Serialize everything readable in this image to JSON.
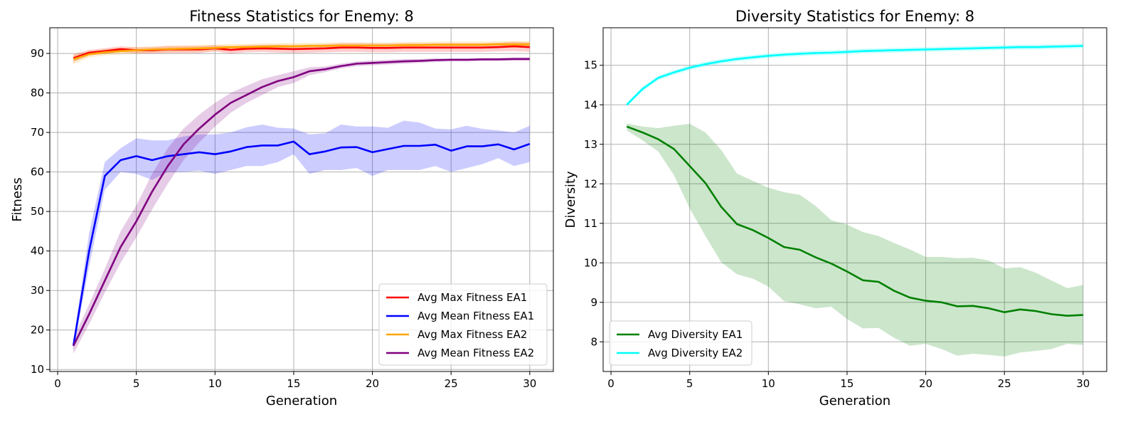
{
  "chart_data": [
    {
      "type": "line",
      "title": "Fitness Statistics for Enemy: 8",
      "xlabel": "Generation",
      "ylabel": "Fitness",
      "xlim": [
        -0.5,
        31.5
      ],
      "ylim": [
        9.5,
        96.5
      ],
      "xticks": [
        0,
        5,
        10,
        15,
        20,
        25,
        30
      ],
      "yticks": [
        10,
        20,
        30,
        40,
        50,
        60,
        70,
        80,
        90
      ],
      "grid": true,
      "legend": "bottom-right",
      "x": [
        1,
        2,
        3,
        4,
        5,
        6,
        7,
        8,
        9,
        10,
        11,
        12,
        13,
        14,
        15,
        16,
        17,
        18,
        19,
        20,
        21,
        22,
        23,
        24,
        25,
        26,
        27,
        28,
        29,
        30
      ],
      "series": [
        {
          "name": "Avg Max Fitness EA1",
          "color": "#ff0000",
          "values": [
            88.8,
            90.2,
            90.6,
            91.1,
            90.8,
            90.8,
            91.0,
            91.0,
            91.0,
            91.3,
            90.9,
            91.2,
            91.3,
            91.2,
            91.1,
            91.2,
            91.3,
            91.5,
            91.5,
            91.4,
            91.4,
            91.5,
            91.5,
            91.5,
            91.5,
            91.5,
            91.5,
            91.6,
            91.8,
            91.6
          ],
          "lower": [
            87.8,
            89.5,
            89.9,
            90.4,
            90.0,
            90.0,
            90.1,
            90.1,
            90.1,
            90.5,
            90.0,
            90.3,
            90.4,
            90.2,
            90.1,
            90.2,
            90.3,
            90.4,
            90.4,
            90.3,
            90.3,
            90.4,
            90.4,
            90.4,
            90.4,
            90.4,
            90.4,
            90.5,
            90.6,
            90.4
          ],
          "upper": [
            89.8,
            90.9,
            91.3,
            91.8,
            91.6,
            91.6,
            91.9,
            91.9,
            91.9,
            92.1,
            91.8,
            92.1,
            92.2,
            92.2,
            92.1,
            92.2,
            92.3,
            92.6,
            92.6,
            92.5,
            92.5,
            92.6,
            92.6,
            92.6,
            92.6,
            92.6,
            92.6,
            92.7,
            93.0,
            92.8
          ]
        },
        {
          "name": "Avg Mean Fitness EA1",
          "color": "#0000ff",
          "values": [
            16.0,
            40.0,
            59.0,
            63.0,
            64.0,
            63.0,
            64.0,
            64.5,
            65.0,
            64.5,
            65.2,
            66.3,
            66.7,
            66.7,
            67.7,
            64.5,
            65.2,
            66.2,
            66.3,
            65.0,
            65.8,
            66.6,
            66.6,
            66.9,
            65.4,
            66.5,
            66.5,
            67.0,
            65.7,
            67.1
          ],
          "lower": [
            15.0,
            36.0,
            55.5,
            60.0,
            59.5,
            58.0,
            60.0,
            60.0,
            60.3,
            59.5,
            60.5,
            61.5,
            61.5,
            62.5,
            64.5,
            59.5,
            60.5,
            60.5,
            61.0,
            59.0,
            60.5,
            60.5,
            60.5,
            61.5,
            60.0,
            61.0,
            62.0,
            63.5,
            61.5,
            62.5
          ],
          "upper": [
            17.5,
            44.5,
            62.5,
            66.0,
            68.5,
            68.0,
            68.0,
            69.0,
            69.5,
            69.5,
            70.0,
            71.3,
            72.0,
            71.2,
            71.0,
            69.5,
            69.8,
            72.0,
            71.5,
            71.5,
            71.2,
            73.0,
            72.5,
            71.0,
            70.8,
            71.7,
            70.9,
            70.5,
            70.0,
            71.7
          ]
        },
        {
          "name": "Avg Max Fitness EA2",
          "color": "#ffa500",
          "values": [
            88.5,
            89.8,
            90.3,
            90.6,
            90.8,
            91.0,
            91.1,
            91.2,
            91.3,
            91.4,
            91.6,
            91.6,
            91.7,
            91.8,
            91.8,
            91.9,
            91.9,
            92.0,
            92.0,
            92.0,
            92.0,
            92.1,
            92.1,
            92.2,
            92.2,
            92.2,
            92.2,
            92.3,
            92.3,
            92.3
          ],
          "lower": [
            87.3,
            89.0,
            89.5,
            89.8,
            90.0,
            90.2,
            90.3,
            90.4,
            90.5,
            90.6,
            90.8,
            90.8,
            90.9,
            91.0,
            91.0,
            91.1,
            91.1,
            91.2,
            91.2,
            91.2,
            91.2,
            91.3,
            91.3,
            91.4,
            91.4,
            91.4,
            91.4,
            91.5,
            91.5,
            91.5
          ],
          "upper": [
            89.7,
            90.6,
            91.1,
            91.4,
            91.6,
            91.8,
            91.9,
            92.0,
            92.1,
            92.2,
            92.4,
            92.4,
            92.5,
            92.6,
            92.6,
            92.7,
            92.7,
            92.8,
            92.8,
            92.8,
            92.8,
            92.9,
            92.9,
            93.0,
            93.0,
            93.0,
            93.0,
            93.1,
            93.1,
            93.1
          ]
        },
        {
          "name": "Avg Mean Fitness EA2",
          "color": "#800080",
          "values": [
            16.0,
            24.0,
            32.5,
            41.0,
            47.5,
            55.0,
            61.5,
            67.0,
            71.0,
            74.5,
            77.5,
            79.5,
            81.5,
            83.0,
            84.0,
            85.5,
            86.0,
            86.8,
            87.4,
            87.6,
            87.8,
            88.0,
            88.1,
            88.3,
            88.4,
            88.4,
            88.5,
            88.5,
            88.6,
            88.6
          ],
          "lower": [
            14.0,
            21.5,
            29.5,
            37.0,
            43.5,
            50.5,
            57.0,
            63.0,
            67.5,
            71.5,
            75.0,
            77.5,
            79.5,
            81.5,
            82.5,
            84.5,
            85.3,
            86.2,
            86.8,
            87.0,
            87.2,
            87.4,
            87.6,
            87.8,
            88.0,
            88.0,
            88.1,
            88.1,
            88.2,
            88.2
          ],
          "upper": [
            18.0,
            26.5,
            35.5,
            45.0,
            51.5,
            59.5,
            66.0,
            71.0,
            74.5,
            77.5,
            80.0,
            81.8,
            83.5,
            84.5,
            85.5,
            86.5,
            86.7,
            87.4,
            88.0,
            88.2,
            88.4,
            88.6,
            88.6,
            88.8,
            88.8,
            88.8,
            88.9,
            88.9,
            89.0,
            89.0
          ]
        }
      ]
    },
    {
      "type": "line",
      "title": "Diversity Statistics for Enemy: 8",
      "xlabel": "Generation",
      "ylabel": "Diversity",
      "xlim": [
        -0.5,
        31.5
      ],
      "ylim": [
        7.25,
        15.95
      ],
      "xticks": [
        0,
        5,
        10,
        15,
        20,
        25,
        30
      ],
      "yticks": [
        8,
        9,
        10,
        11,
        12,
        13,
        14,
        15
      ],
      "grid": true,
      "legend": "bottom-left",
      "x": [
        1,
        2,
        3,
        4,
        5,
        6,
        7,
        8,
        9,
        10,
        11,
        12,
        13,
        14,
        15,
        16,
        17,
        18,
        19,
        20,
        21,
        22,
        23,
        24,
        25,
        26,
        27,
        28,
        29,
        30
      ],
      "series": [
        {
          "name": "Avg Diversity EA1",
          "color": "#008000",
          "values": [
            13.45,
            13.3,
            13.13,
            12.88,
            12.45,
            12.02,
            11.42,
            10.98,
            10.83,
            10.63,
            10.4,
            10.33,
            10.14,
            9.98,
            9.78,
            9.56,
            9.52,
            9.29,
            9.12,
            9.04,
            9.0,
            8.9,
            8.91,
            8.85,
            8.75,
            8.82,
            8.78,
            8.7,
            8.66,
            8.68
          ],
          "lower": [
            13.35,
            13.1,
            12.82,
            12.22,
            11.38,
            10.68,
            10.02,
            9.71,
            9.6,
            9.4,
            9.03,
            8.95,
            8.85,
            8.89,
            8.58,
            8.34,
            8.35,
            8.1,
            7.9,
            7.95,
            7.82,
            7.65,
            7.7,
            7.67,
            7.63,
            7.73,
            7.77,
            7.82,
            7.95,
            7.92
          ],
          "upper": [
            13.53,
            13.45,
            13.41,
            13.47,
            13.52,
            13.3,
            12.86,
            12.26,
            12.08,
            11.9,
            11.79,
            11.72,
            11.44,
            11.08,
            10.97,
            10.78,
            10.68,
            10.5,
            10.34,
            10.15,
            10.15,
            10.12,
            10.13,
            10.06,
            9.86,
            9.89,
            9.75,
            9.55,
            9.36,
            9.44
          ]
        },
        {
          "name": "Avg Diversity EA2",
          "color": "#00ffff",
          "values": [
            14.0,
            14.4,
            14.68,
            14.82,
            14.94,
            15.03,
            15.1,
            15.16,
            15.2,
            15.24,
            15.27,
            15.29,
            15.31,
            15.32,
            15.34,
            15.36,
            15.37,
            15.38,
            15.39,
            15.4,
            15.41,
            15.42,
            15.43,
            15.44,
            15.45,
            15.46,
            15.46,
            15.47,
            15.48,
            15.49
          ],
          "lower": [
            13.95,
            14.34,
            14.62,
            14.76,
            14.88,
            14.97,
            15.04,
            15.1,
            15.14,
            15.18,
            15.21,
            15.23,
            15.25,
            15.26,
            15.28,
            15.3,
            15.31,
            15.32,
            15.33,
            15.34,
            15.35,
            15.36,
            15.37,
            15.38,
            15.39,
            15.4,
            15.4,
            15.41,
            15.42,
            15.43
          ],
          "upper": [
            14.05,
            14.46,
            14.74,
            14.88,
            15.0,
            15.09,
            15.16,
            15.22,
            15.26,
            15.3,
            15.33,
            15.35,
            15.37,
            15.38,
            15.4,
            15.42,
            15.43,
            15.44,
            15.45,
            15.46,
            15.47,
            15.48,
            15.49,
            15.5,
            15.51,
            15.52,
            15.52,
            15.53,
            15.54,
            15.55
          ]
        }
      ]
    }
  ]
}
